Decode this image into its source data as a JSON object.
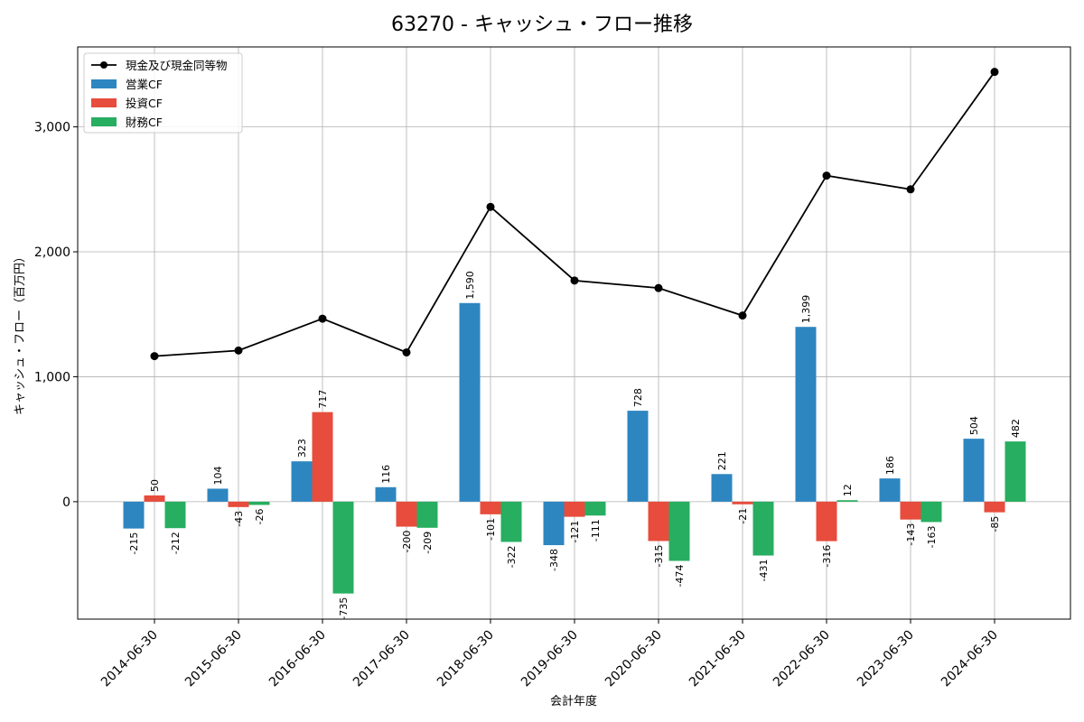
{
  "chart_data": {
    "type": "bar",
    "title": "63270 - キャッシュ・フロー推移",
    "xlabel": "会計年度",
    "ylabel": "キャッシュ・フロー（百万円）",
    "ylim": [
      -940,
      3640
    ],
    "yticks": [
      0,
      1000,
      2000,
      3000
    ],
    "ytick_labels": [
      "0",
      "1,000",
      "2,000",
      "3,000"
    ],
    "grid": true,
    "legend_position": "top-left",
    "categories": [
      "2014-06-30",
      "2015-06-30",
      "2016-06-30",
      "2017-06-30",
      "2018-06-30",
      "2019-06-30",
      "2020-06-30",
      "2021-06-30",
      "2022-06-30",
      "2023-06-30",
      "2024-06-30"
    ],
    "series": [
      {
        "name": "営業CF",
        "kind": "bar",
        "color": "#2e86c1",
        "values": [
          -215,
          104,
          323,
          116,
          1590,
          -348,
          728,
          221,
          1399,
          186,
          504
        ],
        "labels": [
          "-215",
          "104",
          "323",
          "116",
          "1,590",
          "-348",
          "728",
          "221",
          "1,399",
          "186",
          "504"
        ]
      },
      {
        "name": "投資CF",
        "kind": "bar",
        "color": "#e74c3c",
        "values": [
          50,
          -43,
          717,
          -200,
          -101,
          -121,
          -315,
          -21,
          -316,
          -143,
          -85
        ],
        "labels": [
          "50",
          "-43",
          "717",
          "-200",
          "-101",
          "-121",
          "-315",
          "-21",
          "-316",
          "-143",
          "-85"
        ]
      },
      {
        "name": "財務CF",
        "kind": "bar",
        "color": "#27ae60",
        "values": [
          -212,
          -26,
          -735,
          -209,
          -322,
          -111,
          -474,
          -431,
          12,
          -163,
          482
        ],
        "labels": [
          "-212",
          "-26",
          "-735",
          "-209",
          "-322",
          "-111",
          "-474",
          "-431",
          "12",
          "-163",
          "482"
        ]
      },
      {
        "name": "現金及び現金同等物",
        "kind": "line",
        "color": "#000000",
        "values": [
          1165,
          1210,
          1465,
          1195,
          2360,
          1770,
          1710,
          1490,
          2610,
          2500,
          3440
        ]
      }
    ]
  }
}
